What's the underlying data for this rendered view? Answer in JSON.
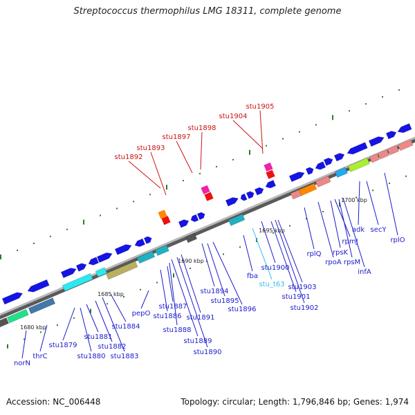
{
  "title": "Streptococcus thermophilus LMG 18311, complete genome",
  "footer": {
    "accession": "Accession: NC_006448",
    "topology": "Topology: circular; Length: 1,796,846 bp; Genes: 1,974"
  },
  "colors": {
    "backbone": "#8c8c8c",
    "gene_label_blue": "#1a1acc",
    "gene_label_red": "#cc1111",
    "trna_label": "#33bbee",
    "tick": "#2a7a2a",
    "forward_gene": "#1414e6",
    "reverse_gene_red": "#ee1111"
  },
  "scale_labels": [
    "1680 kbp",
    "1685 kbp",
    "1690 kbp",
    "1695 kbp",
    "1700 kbp"
  ],
  "gene_labels_red": [
    "stu1892",
    "stu1893",
    "stu1897",
    "stu1898",
    "stu1904",
    "stu1905"
  ],
  "gene_labels_blue": [
    "norN",
    "thrC",
    "stu1879",
    "stu1880",
    "stu1881",
    "stu1882",
    "stu1883",
    "stu1884",
    "pepO",
    "stu1886",
    "stu1887",
    "stu1888",
    "stu1889",
    "stu1890",
    "stu1891",
    "stu1894",
    "stu1895",
    "stu1896",
    "fba",
    "stu1900",
    "stu1901",
    "stu1902",
    "stu1903",
    "rplQ",
    "rpoA",
    "rpsK",
    "rpsM",
    "rpmJ",
    "infA",
    "adk",
    "secY",
    "rplO"
  ],
  "trna_labels": [
    "stu_t63"
  ]
}
